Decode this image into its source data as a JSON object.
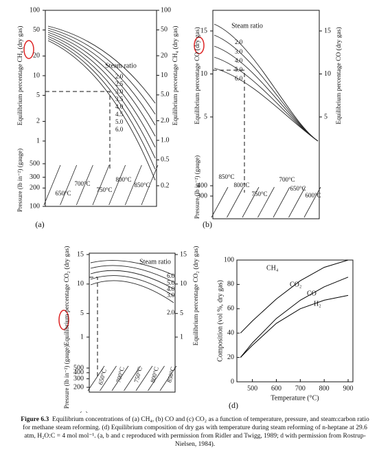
{
  "panels": [
    {
      "label": "(a)",
      "ylabel": "Equilibrium percentage CH₄ (dry gas)",
      "y2label": "Equilibrium percentage CH₄ (dry gas)",
      "pressure_label": "Pressure (lb in⁻²) (gauge)",
      "log_scale": true,
      "ylim": [
        1,
        100
      ],
      "yticks": [
        100,
        50,
        20,
        10,
        5,
        2,
        1
      ],
      "y2lim": [
        0.2,
        100
      ],
      "y2ticks": [
        100,
        50,
        20,
        10,
        {
          "value": 5,
          "label": "5.0"
        },
        {
          "value": 2,
          "label": "2.0"
        },
        {
          "value": 1,
          "label": "1.0"
        },
        0.5,
        0.2
      ],
      "pressure_log_scale": true,
      "pressure_lim": [
        100,
        500
      ],
      "pressure_ticks": [
        500,
        300,
        200,
        100
      ],
      "legend_title": "Steam ratio",
      "ratios": [
        "2.0",
        "2.5",
        "3.0",
        "3.5",
        "4.0",
        "4.5",
        "5.0",
        "6.0"
      ],
      "temperatures": [
        "650°C",
        "700°C",
        "750°C",
        "800°C",
        "850°C"
      ]
    },
    {
      "label": "(b)",
      "ylabel": "Equilibrium percentage CO (dry gas)",
      "y2label": "Equilibrium percentage CO (dry gas)",
      "pressure_label": "Pressure (lb in⁻²) (gauge)",
      "log_scale": false,
      "ylim": [
        5,
        15
      ],
      "yticks": [
        15,
        10,
        5
      ],
      "y2lim": [
        5,
        15
      ],
      "y2ticks": [
        15,
        10,
        5
      ],
      "pressure_log_scale": true,
      "pressure_lim": [
        300,
        400
      ],
      "pressure_ticks": [
        400,
        300
      ],
      "legend_title": "Steam ratio",
      "ratios": [
        "2.0",
        "3.0",
        "4.0",
        "5.0",
        "6.0"
      ],
      "temperatures": [
        "850°C",
        "800°C",
        "750°C",
        "700°C",
        "650°C",
        "600°C"
      ]
    },
    {
      "label": "(c)",
      "ylabel": "Equilibrium percentage CO₂ (dry gas)",
      "y2label": "Equilibrium percentage CO₂ (dry gas)",
      "pressure_label": "Pressure (lb in⁻²) (gauge)",
      "log_scale": false,
      "ylim": [
        1,
        15
      ],
      "yticks": [
        15,
        10,
        5,
        1
      ],
      "y2lim": [
        1,
        15
      ],
      "y2ticks": [
        15,
        10,
        5,
        1
      ],
      "pressure_log_scale": true,
      "pressure_lim": [
        200,
        500
      ],
      "pressure_ticks": [
        500,
        400,
        300,
        200
      ],
      "legend_title": "Steam ratio",
      "ratios": [
        "6.0",
        "5.0",
        "4.0",
        "3.0",
        "2.0"
      ],
      "temperatures": [
        "650°C",
        "700°C",
        "750°C",
        "800°C",
        "850°C"
      ]
    }
  ],
  "chart_data": {
    "type": "line",
    "label": "(d)",
    "xlabel": "Temperature (°C)",
    "ylabel": "Composition (vol %, dry gas)",
    "x": [
      450,
      500,
      600,
      700,
      800,
      900
    ],
    "xlim": [
      435,
      920
    ],
    "xticks": [
      500,
      600,
      700,
      800,
      900
    ],
    "ylim": [
      0,
      100
    ],
    "yticks": [
      0,
      20,
      40,
      60,
      80,
      100
    ],
    "series": [
      {
        "color": "#000000",
        "values": [
          40,
          50,
          68,
          83,
          94,
          100
        ]
      },
      {
        "color": "#000000",
        "values": [
          20,
          32,
          52,
          67,
          78,
          86
        ]
      },
      {
        "color": "#000000",
        "values": [
          20,
          30,
          48,
          60,
          67,
          71
        ]
      }
    ],
    "annotations": [
      "CH₄",
      "CO₂",
      "CO",
      "H₂"
    ]
  },
  "caption": {
    "label": "Figure 6.3",
    "text": "Equilibrium concentrations of (a) CH₄, (b) CO and (c) CO₂ as a function of temperature, pressure, and steam:carbon ratio for methane steam reforming. (d) Equilibrium composition of dry gas with temperature during steam reforming of n-heptane at 29.6 atm, H₂O:C = 4 mol mol⁻¹. (a, b and c reproduced with permission from Ridler and Twigg, 1989; d with permission from Rostrup-Nielsen, 1984)."
  }
}
